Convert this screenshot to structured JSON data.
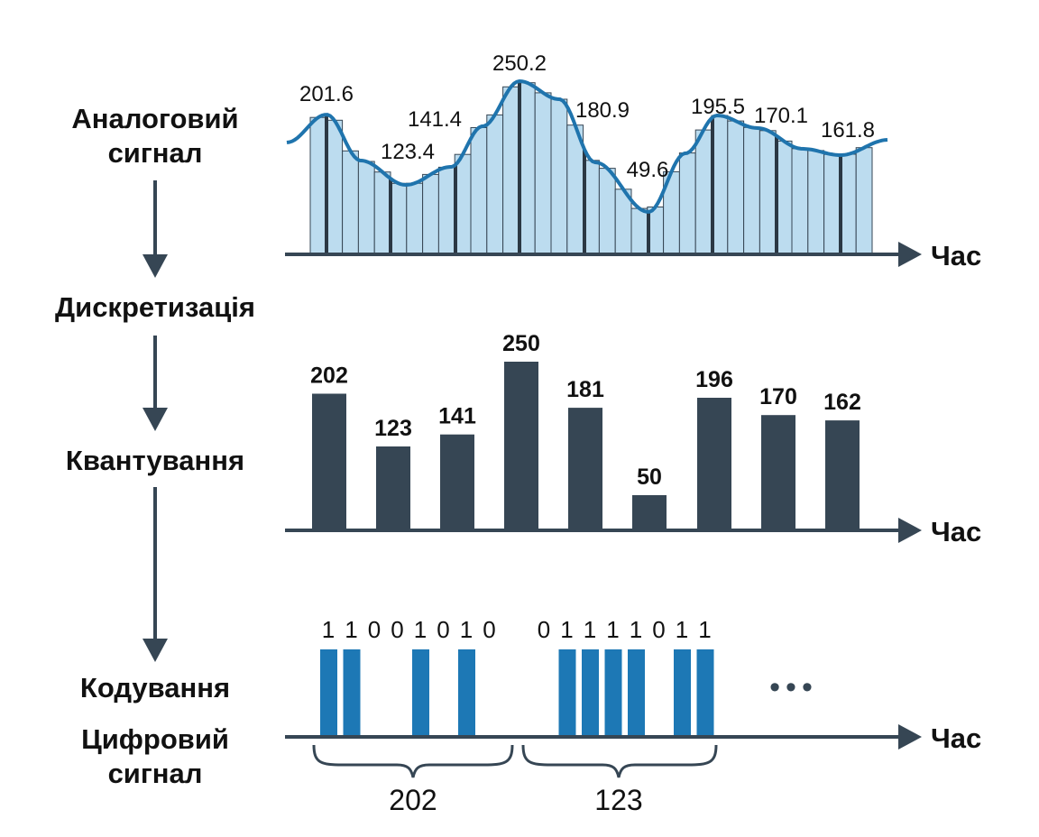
{
  "colors": {
    "axis": "#364654",
    "curve": "#1f74ad",
    "sample_fill": "#bcdcef",
    "quant_bar": "#364654",
    "code_bar": "#1d78b5",
    "flow_arrow": "#364654"
  },
  "stages": {
    "analog": "Аналоговий сигнал",
    "analog_line1": "Аналоговий",
    "analog_line2": "сигнал",
    "sampling": "Дискретизація",
    "quantization": "Квантування",
    "coding": "Кодування",
    "digital_line1": "Цифровий",
    "digital_line2": "сигнал"
  },
  "axis_label": "Час",
  "analog_samples": {
    "labels": [
      "201.6",
      "123.4",
      "141.4",
      "250.2",
      "180.9",
      "49.6",
      "195.5",
      "170.1",
      "161.8"
    ],
    "values": [
      201.6,
      123.4,
      141.4,
      250.2,
      180.9,
      49.6,
      195.5,
      170.1,
      161.8
    ]
  },
  "quantized": {
    "labels": [
      "202",
      "123",
      "141",
      "250",
      "181",
      "50",
      "196",
      "170",
      "162"
    ],
    "values": [
      202,
      123,
      141,
      250,
      181,
      50,
      196,
      170,
      162
    ]
  },
  "coding": {
    "group1_bits": "11001010",
    "group2_bits": "01111011",
    "group1_value": "202",
    "group2_value": "123",
    "ellipsis": "•••"
  }
}
